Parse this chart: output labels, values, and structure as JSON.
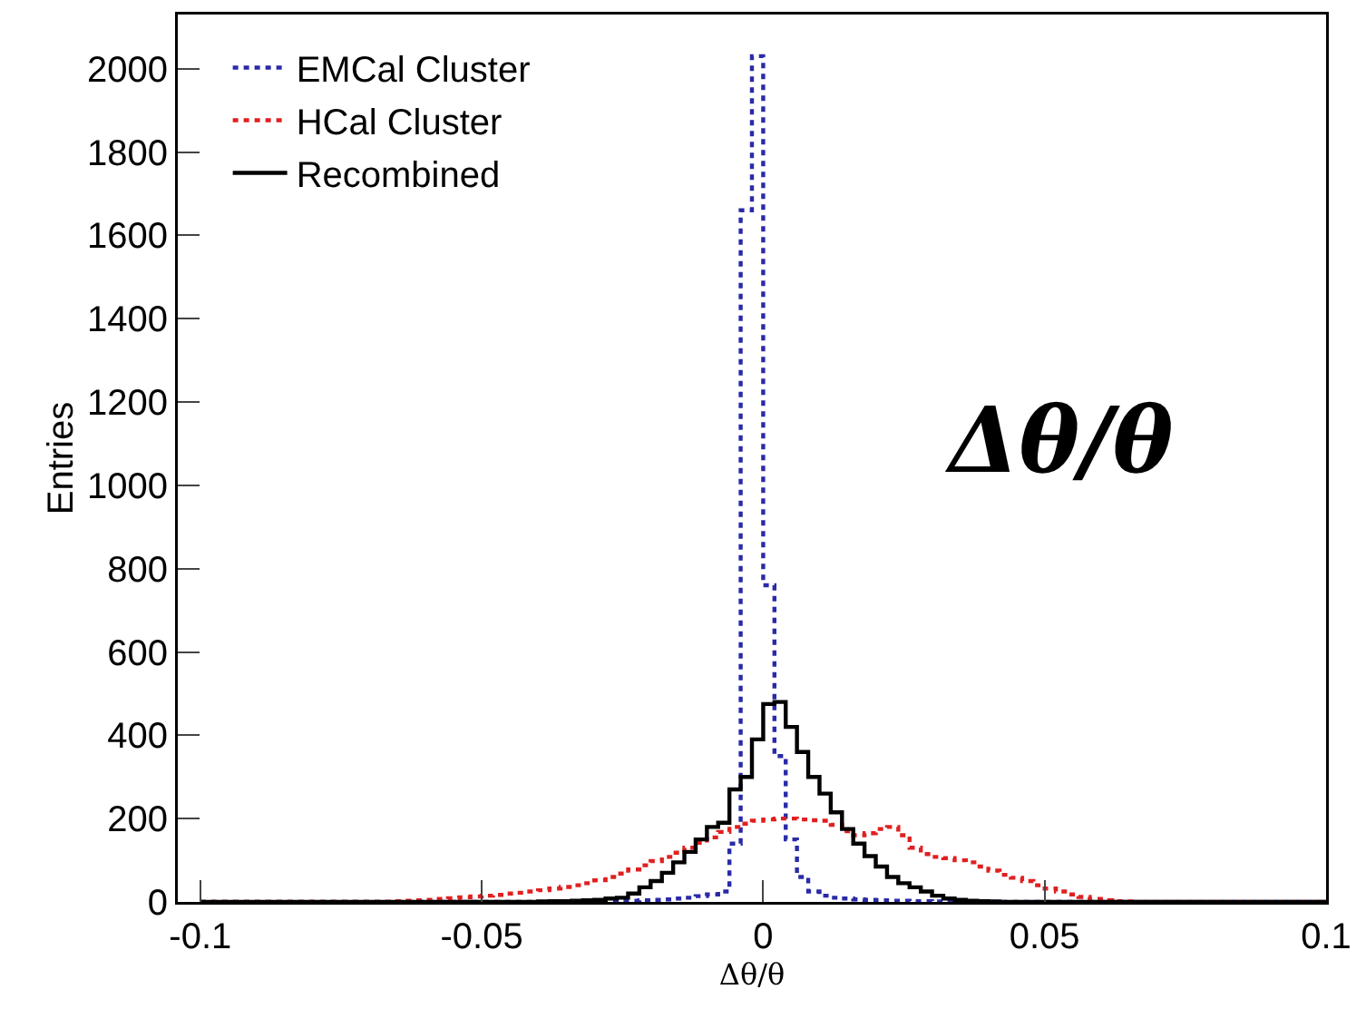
{
  "chart_data": {
    "type": "histogram",
    "xlabel": "Δθ/θ",
    "ylabel": "Entries",
    "annotations": [
      "Δθ/θ"
    ],
    "bins": [
      -0.1,
      -0.098,
      -0.096,
      -0.094,
      -0.092,
      -0.09,
      -0.088,
      -0.086,
      -0.084,
      -0.082,
      -0.08,
      -0.078,
      -0.076,
      -0.074,
      -0.072,
      -0.07,
      -0.068,
      -0.066,
      -0.064,
      -0.062,
      -0.06,
      -0.058,
      -0.056,
      -0.054,
      -0.052,
      -0.05,
      -0.048,
      -0.046,
      -0.044,
      -0.042,
      -0.04,
      -0.038,
      -0.036,
      -0.034,
      -0.032,
      -0.03,
      -0.028,
      -0.026,
      -0.024,
      -0.022,
      -0.02,
      -0.018,
      -0.016,
      -0.014,
      -0.012,
      -0.01,
      -0.008,
      -0.006,
      -0.004,
      -0.002,
      0,
      0.002,
      0.004,
      0.006,
      0.008,
      0.01,
      0.012,
      0.014,
      0.016,
      0.018,
      0.02,
      0.022,
      0.024,
      0.026,
      0.028,
      0.03,
      0.032,
      0.034,
      0.036,
      0.038,
      0.04,
      0.042,
      0.044,
      0.046,
      0.048,
      0.05,
      0.052,
      0.054,
      0.056,
      0.058,
      0.06,
      0.062,
      0.064,
      0.066,
      0.068,
      0.07,
      0.072,
      0.074,
      0.076,
      0.078,
      0.08,
      0.082,
      0.084,
      0.086,
      0.088,
      0.09,
      0.092,
      0.094,
      0.096,
      0.098,
      0.1
    ],
    "series": [
      {
        "name": "EMCal Cluster",
        "color": "#2a2aa8",
        "line_style": "dotted",
        "values": [
          0,
          0,
          0,
          0,
          0,
          0,
          0,
          0,
          0,
          0,
          0,
          0,
          0,
          0,
          0,
          0,
          0,
          0,
          0,
          0,
          0,
          0,
          0,
          0,
          0,
          0,
          0,
          0,
          0,
          0,
          0,
          0,
          0,
          0,
          0,
          2,
          2,
          3,
          3,
          4,
          5,
          6,
          8,
          10,
          14,
          18,
          25,
          140,
          1660,
          2030,
          760,
          350,
          150,
          60,
          25,
          15,
          10,
          8,
          6,
          5,
          4,
          3,
          3,
          2,
          2,
          1,
          0,
          0,
          0,
          0,
          0,
          0,
          0,
          0,
          0,
          0,
          0,
          0,
          0,
          0,
          0,
          0,
          0,
          0,
          0,
          0,
          0,
          0,
          0,
          0,
          0,
          0,
          0,
          0,
          0,
          0,
          0,
          0,
          0,
          0
        ]
      },
      {
        "name": "HCal Cluster",
        "color": "#e02020",
        "line_style": "dotted",
        "values": [
          0,
          0,
          0,
          0,
          0,
          0,
          0,
          0,
          0,
          0,
          0,
          0,
          0,
          0,
          0,
          0,
          0,
          2,
          3,
          4,
          5,
          7,
          9,
          11,
          13,
          15,
          17,
          20,
          22,
          25,
          28,
          32,
          36,
          40,
          45,
          52,
          60,
          68,
          78,
          88,
          98,
          108,
          118,
          130,
          142,
          155,
          168,
          180,
          188,
          195,
          198,
          200,
          200,
          198,
          196,
          195,
          185,
          170,
          160,
          165,
          175,
          180,
          160,
          130,
          115,
          108,
          105,
          100,
          95,
          85,
          75,
          65,
          58,
          50,
          40,
          32,
          25,
          18,
          12,
          7,
          4,
          2,
          1,
          0,
          0,
          0,
          0,
          0,
          0,
          0,
          0,
          0,
          0,
          0,
          0,
          0,
          0,
          0,
          0,
          0
        ]
      },
      {
        "name": "Recombined",
        "color": "#000000",
        "line_style": "solid",
        "values": [
          0,
          0,
          0,
          0,
          0,
          0,
          0,
          0,
          0,
          0,
          0,
          0,
          0,
          0,
          0,
          0,
          0,
          0,
          0,
          0,
          0,
          0,
          0,
          0,
          0,
          0,
          0,
          0,
          0,
          0,
          1,
          2,
          2,
          3,
          4,
          5,
          8,
          10,
          20,
          35,
          50,
          70,
          95,
          120,
          150,
          180,
          190,
          270,
          300,
          390,
          475,
          480,
          420,
          360,
          300,
          260,
          215,
          175,
          140,
          110,
          85,
          60,
          45,
          35,
          25,
          15,
          8,
          5,
          3,
          2,
          1,
          0,
          0,
          0,
          0,
          0,
          0,
          0,
          0,
          0,
          0,
          0,
          0,
          0,
          0,
          0,
          0,
          0,
          0,
          0,
          0,
          0,
          0,
          0,
          0,
          0,
          0,
          0,
          0,
          0
        ]
      }
    ],
    "xlim": [
      -0.104,
      0.1
    ],
    "xticks": [
      -0.1,
      -0.05,
      0,
      0.05,
      0.1
    ],
    "ylim": [
      0,
      2130
    ],
    "yticks": [
      0,
      200,
      400,
      600,
      800,
      1000,
      1200,
      1400,
      1600,
      1800,
      2000
    ],
    "grid": false,
    "legend": "top left"
  }
}
